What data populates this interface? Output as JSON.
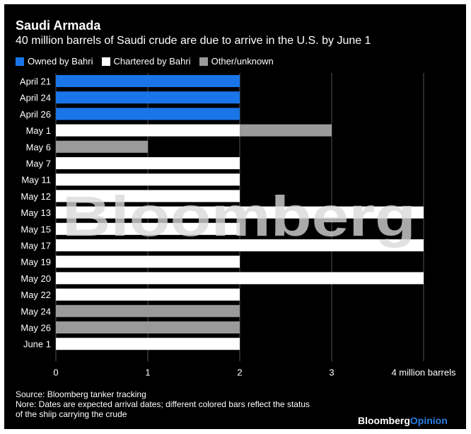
{
  "title": "Saudi Armada",
  "subtitle": "40 million barrels of Saudi crude are due to arrive in the U.S. by June 1",
  "colors": {
    "background": "#000000",
    "owned": "#1a75e8",
    "chartered": "#ffffff",
    "other": "#9a9a9a",
    "text": "#ffffff",
    "watermark": "#d9d9d9",
    "brand_accent": "#2a7de1"
  },
  "legend": [
    {
      "label": "Owned by Bahri",
      "color": "#1a75e8"
    },
    {
      "label": "Chartered by Bahri",
      "color": "#ffffff"
    },
    {
      "label": "Other/unknown",
      "color": "#9a9a9a"
    }
  ],
  "chart_data": {
    "type": "bar",
    "orientation": "horizontal",
    "stacked": true,
    "title": "Saudi Armada",
    "subtitle": "40 million barrels of Saudi crude are due to arrive in the U.S. by June 1",
    "categories": [
      "April 21",
      "April 24",
      "April 26",
      "May 1",
      "May 6",
      "May 7",
      "May 11",
      "May 12",
      "May 13",
      "May 15",
      "May 17",
      "May 19",
      "May 20",
      "May 22",
      "May 24",
      "May 26",
      "June 1"
    ],
    "series": [
      {
        "name": "Owned by Bahri",
        "color": "#1a75e8",
        "values": [
          2,
          2,
          2,
          0,
          0,
          0,
          0,
          0,
          0,
          0,
          0,
          0,
          0,
          0,
          0,
          0,
          0
        ]
      },
      {
        "name": "Chartered by Bahri",
        "color": "#ffffff",
        "values": [
          0,
          0,
          0,
          2,
          0,
          2,
          2,
          2,
          4,
          2,
          4,
          2,
          4,
          2,
          0,
          0,
          2
        ]
      },
      {
        "name": "Other/unknown",
        "color": "#9a9a9a",
        "values": [
          0,
          0,
          0,
          1,
          1,
          0,
          0,
          0,
          0,
          0,
          0,
          0,
          0,
          0,
          2,
          2,
          0
        ]
      }
    ],
    "x_ticks": [
      {
        "value": 0,
        "label": "0"
      },
      {
        "value": 1,
        "label": "1"
      },
      {
        "value": 2,
        "label": "2"
      },
      {
        "value": 3,
        "label": "3"
      },
      {
        "value": 4,
        "label": "4 million barrels"
      }
    ],
    "xlim": [
      0,
      4
    ],
    "xlabel": "million barrels",
    "ylabel": "",
    "legend_position": "top-left"
  },
  "watermark": "Bloomberg",
  "footer": {
    "source": "Source: Bloomberg tanker tracking",
    "note_line1": "Nore: Dates are expected arrival dates; different colored bars reflect the status",
    "note_line2": "of the shiip carrying the crude"
  },
  "brand": {
    "main": "Bloomberg",
    "accent": "Opinion"
  }
}
